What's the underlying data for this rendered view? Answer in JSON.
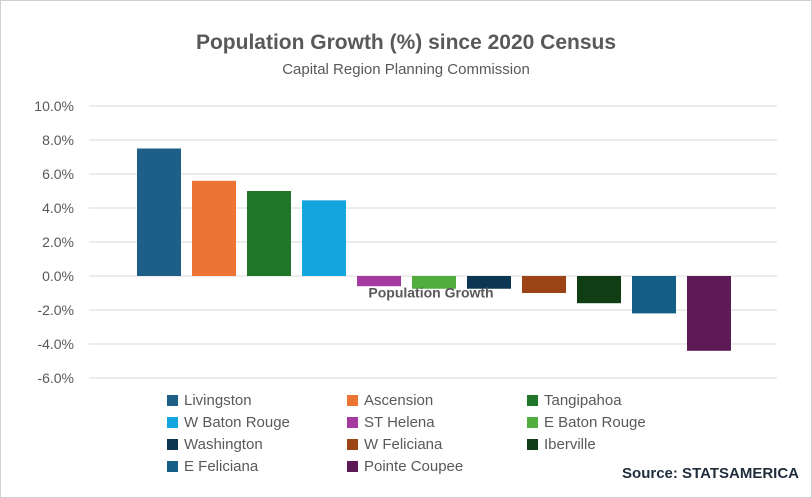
{
  "chart_data": {
    "type": "bar",
    "title": "Population Growth (%) since 2020 Census",
    "subtitle": "Capital Region Planning Commission",
    "series_name": "Population Growth",
    "xlabel": "",
    "ylabel": "",
    "ylim": [
      -6,
      10
    ],
    "yticks": [
      10,
      8,
      6,
      4,
      2,
      0,
      -2,
      -4,
      -6
    ],
    "ytick_labels": [
      "10.0%",
      "8.0%",
      "6.0%",
      "4.0%",
      "2.0%",
      "0.0%",
      "-2.0%",
      "-4.0%",
      "-6.0%"
    ],
    "grid": true,
    "legend_position": "bottom",
    "categories": [
      "Livingston",
      "Ascension",
      "Tangipahoa",
      "W Baton Rouge",
      "ST Helena",
      "E Baton Rouge",
      "Washington",
      "W Feliciana",
      "Iberville",
      "E Feliciana",
      "Pointe Coupee"
    ],
    "values": [
      7.5,
      5.6,
      5.0,
      4.45,
      -0.6,
      -0.75,
      -0.75,
      -1.0,
      -1.6,
      -2.2,
      -4.4
    ],
    "colors": [
      "#1d5f86",
      "#ec7434",
      "#217729",
      "#14a5df",
      "#a4399f",
      "#50ad3e",
      "#0c3651",
      "#9c4416",
      "#103d14",
      "#125e86",
      "#5d1a57"
    ],
    "source": "Source: STATSAMERICA"
  }
}
